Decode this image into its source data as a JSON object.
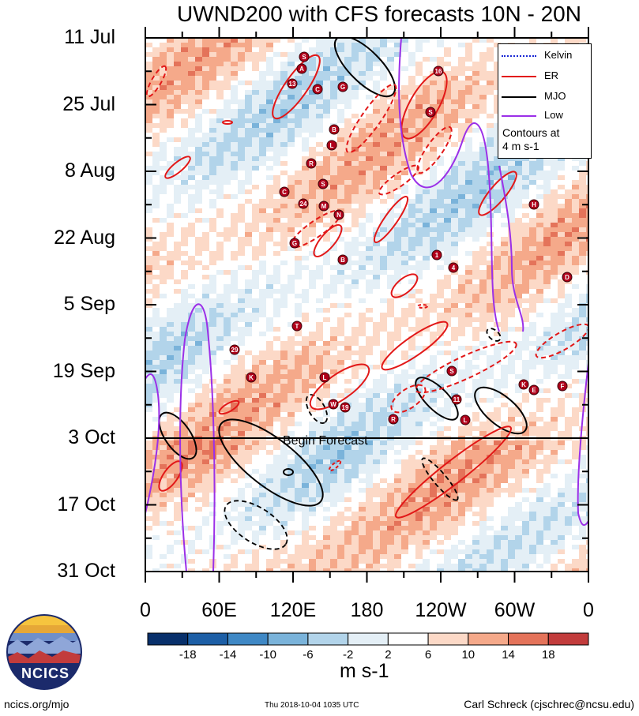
{
  "chart_data": {
    "type": "heatmap",
    "title": "UWND200 with CFS forecasts  10N - 20N",
    "xlabel": "",
    "ylabel": "",
    "x_tick_labels": [
      "0",
      "60E",
      "120E",
      "180",
      "120W",
      "60W",
      "0"
    ],
    "x_range_deg": [
      0,
      360
    ],
    "y_tick_labels": [
      "11 Jul",
      "25 Jul",
      "8 Aug",
      "22 Aug",
      "5 Sep",
      "19 Sep",
      "3 Oct",
      "17 Oct",
      "31 Oct"
    ],
    "y_range": [
      "11 Jul",
      "31 Oct"
    ],
    "forecast_label": "Begin Forecast",
    "forecast_start": "3 Oct",
    "colorbar": {
      "levels": [
        -18,
        -14,
        -10,
        -6,
        -2,
        2,
        6,
        10,
        14,
        18
      ],
      "labels": [
        "-18",
        "-14",
        "-10",
        "-6",
        "-2",
        "2",
        "6",
        "10",
        "14",
        "18"
      ],
      "colors": [
        "#08306b",
        "#1d5fa6",
        "#3f88c5",
        "#7ab3da",
        "#b2d4ea",
        "#e4eff6",
        "#ffffff",
        "#fcd9c7",
        "#f5a98a",
        "#e4735a",
        "#c23c3c",
        "#8c1024",
        "#4d0017"
      ],
      "units": "m s-1"
    },
    "legend": [
      {
        "name": "Kelvin",
        "color": "#1a28d4",
        "style": "dotted"
      },
      {
        "name": "ER",
        "color": "#e21818",
        "style": "solid"
      },
      {
        "name": "MJO",
        "color": "#000000",
        "style": "solid"
      },
      {
        "name": "Low",
        "color": "#9b30e8",
        "style": "solid"
      }
    ],
    "legend_note": [
      "Contours at",
      "4 m s-1"
    ],
    "storm_markers": [
      "S",
      "A",
      "13",
      "C",
      "G",
      "16",
      "S",
      "B",
      "L",
      "R",
      "S",
      "C",
      "24",
      "M",
      "N",
      "G",
      "B",
      "1",
      "4",
      "T",
      "29",
      "K",
      "L",
      "W",
      "19",
      "R",
      "S",
      "11",
      "L",
      "K",
      "E",
      "F",
      "H",
      "D"
    ]
  },
  "footer": {
    "left": "ncics.org/mjo",
    "center": "Thu 2018-10-04 1035 UTC",
    "right": "Carl Schreck (cjschrec@ncsu.edu)",
    "logo": "NCICS"
  }
}
